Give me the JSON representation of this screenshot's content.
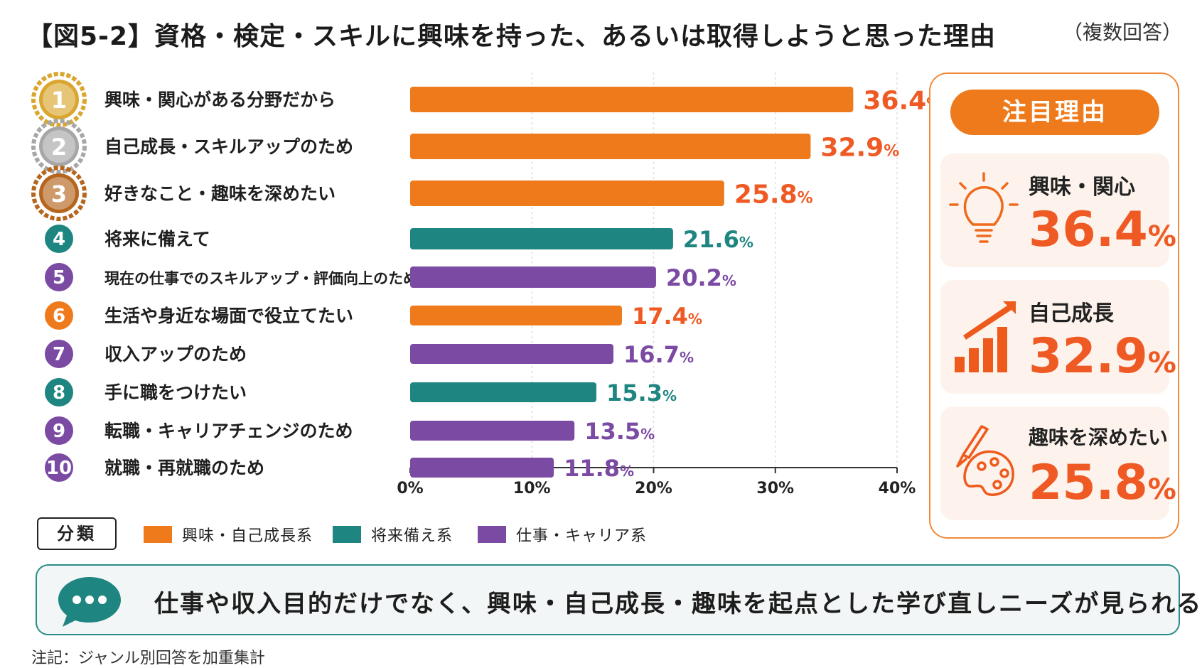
{
  "title": "【図5-2】資格・検定・スキルに興味を持った、あるいは取得しようと思った理由",
  "title_note": "（複数回答）",
  "colors": {
    "orange": "#ee7a1c",
    "teal": "#1e8580",
    "purple": "#7b4aa3",
    "red_value": "#ef5a24",
    "gold": "#d9a62e",
    "silver": "#a7a7a7",
    "bronze": "#b5651d"
  },
  "chart_data": {
    "type": "bar",
    "orientation": "horizontal",
    "categories": [
      "興味・関心がある分野だから",
      "自己成長・スキルアップのため",
      "好きなこと・趣味を深めたい",
      "将来に備えて",
      "現在の仕事でのスキルアップ・評価向上のため",
      "生活や身近な場面で役立てたい",
      "収入アップのため",
      "手に職をつけたい",
      "転職・キャリアチェンジのため",
      "就職・再就職のため"
    ],
    "ranks": [
      "1",
      "2",
      "3",
      "4",
      "5",
      "6",
      "7",
      "8",
      "9",
      "10"
    ],
    "values": [
      36.4,
      32.9,
      25.8,
      21.6,
      20.2,
      17.4,
      16.7,
      15.3,
      13.5,
      11.8
    ],
    "value_labels": [
      "36.4",
      "32.9",
      "25.8",
      "21.6",
      "20.2",
      "17.4",
      "16.7",
      "15.3",
      "13.5",
      "11.8"
    ],
    "groups": [
      "interest",
      "interest",
      "interest",
      "future",
      "career",
      "interest",
      "career",
      "future",
      "career",
      "career"
    ],
    "unit": "%",
    "xlim": [
      0,
      40
    ],
    "xticks": [
      "0%",
      "10%",
      "20%",
      "30%",
      "40%"
    ],
    "grid": true,
    "legend_position": "bottom-left"
  },
  "legend": {
    "box_label": "分類",
    "items": [
      {
        "label": "興味・自己成長系",
        "group": "interest"
      },
      {
        "label": "将来備え系",
        "group": "future"
      },
      {
        "label": "仕事・キャリア系",
        "group": "career"
      }
    ]
  },
  "side_panel": {
    "heading": "注目理由",
    "cards": [
      {
        "label": "興味・関心",
        "value": "36.4",
        "unit": "%",
        "icon": "lightbulb-icon"
      },
      {
        "label": "自己成長",
        "value": "32.9",
        "unit": "%",
        "icon": "growth-chart-icon"
      },
      {
        "label": "趣味を深めたい",
        "value": "25.8",
        "unit": "%",
        "icon": "palette-icon"
      }
    ]
  },
  "banner": {
    "icon": "speech-bubble-icon",
    "message": "仕事や収入目的だけでなく、興味・自己成長・趣味を起点とした学び直しニーズが見られる"
  },
  "footnote": "注記：ジャンル別回答を加重集計"
}
